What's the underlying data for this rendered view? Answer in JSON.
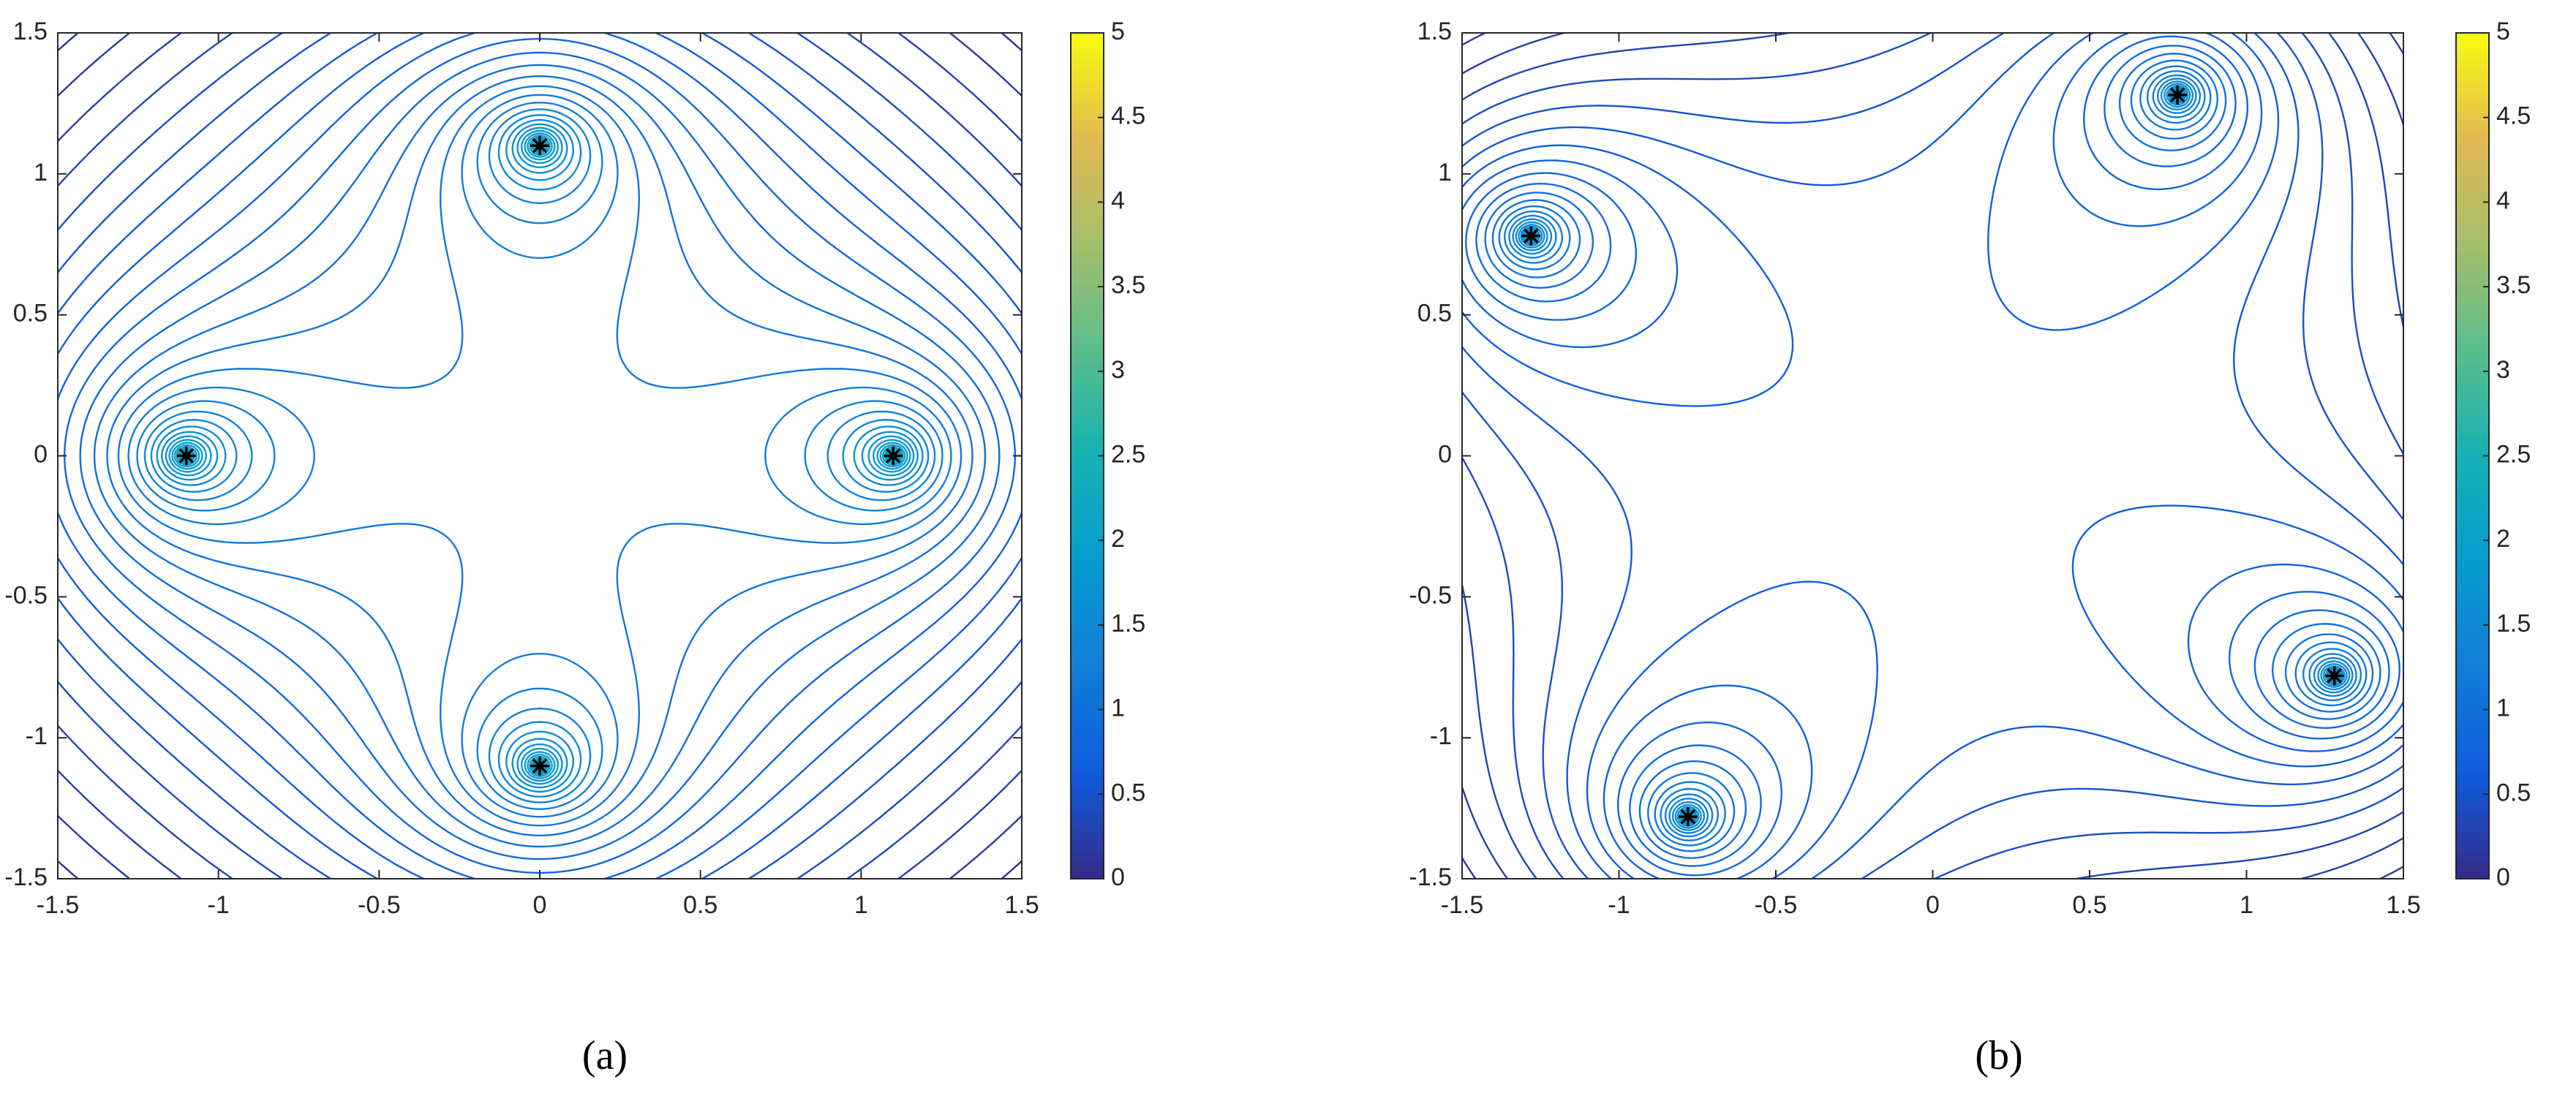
{
  "chart_data": [
    {
      "type": "contour",
      "label": "(a)",
      "colormap": "parula",
      "xlim": [
        -1.5,
        1.5
      ],
      "ylim": [
        -1.5,
        1.5
      ],
      "xticks": [
        -1.5,
        -1,
        -0.5,
        0,
        0.5,
        1,
        1.5
      ],
      "yticks": [
        -1.5,
        -1,
        -0.5,
        0,
        0.5,
        1,
        1.5
      ],
      "clim": [
        0,
        5
      ],
      "cticks": [
        0,
        0.5,
        1,
        1.5,
        2,
        2.5,
        3,
        3.5,
        4,
        4.5,
        5
      ],
      "points": {
        "color": "#000000",
        "x": [
          1.1,
          0,
          -1.1,
          0
        ],
        "y": [
          0,
          1.1,
          0,
          -1.1
        ]
      }
    },
    {
      "type": "contour",
      "label": "(b)",
      "colormap": "parula",
      "xlim": [
        -1.5,
        1.5
      ],
      "ylim": [
        -1.5,
        1.5
      ],
      "xticks": [
        -1.5,
        -1,
        -0.5,
        0,
        0.5,
        1,
        1.5
      ],
      "yticks": [
        -1.5,
        -1,
        -0.5,
        0,
        0.5,
        1,
        1.5
      ],
      "clim": [
        0,
        5
      ],
      "cticks": [
        0,
        0.5,
        1,
        1.5,
        2,
        2.5,
        3,
        3.5,
        4,
        4.5,
        5
      ],
      "points": {
        "color": "#000000",
        "x": [
          0.78,
          -1.28,
          -0.78,
          1.28
        ],
        "y": [
          1.28,
          0.78,
          -1.28,
          -0.78
        ]
      }
    }
  ]
}
